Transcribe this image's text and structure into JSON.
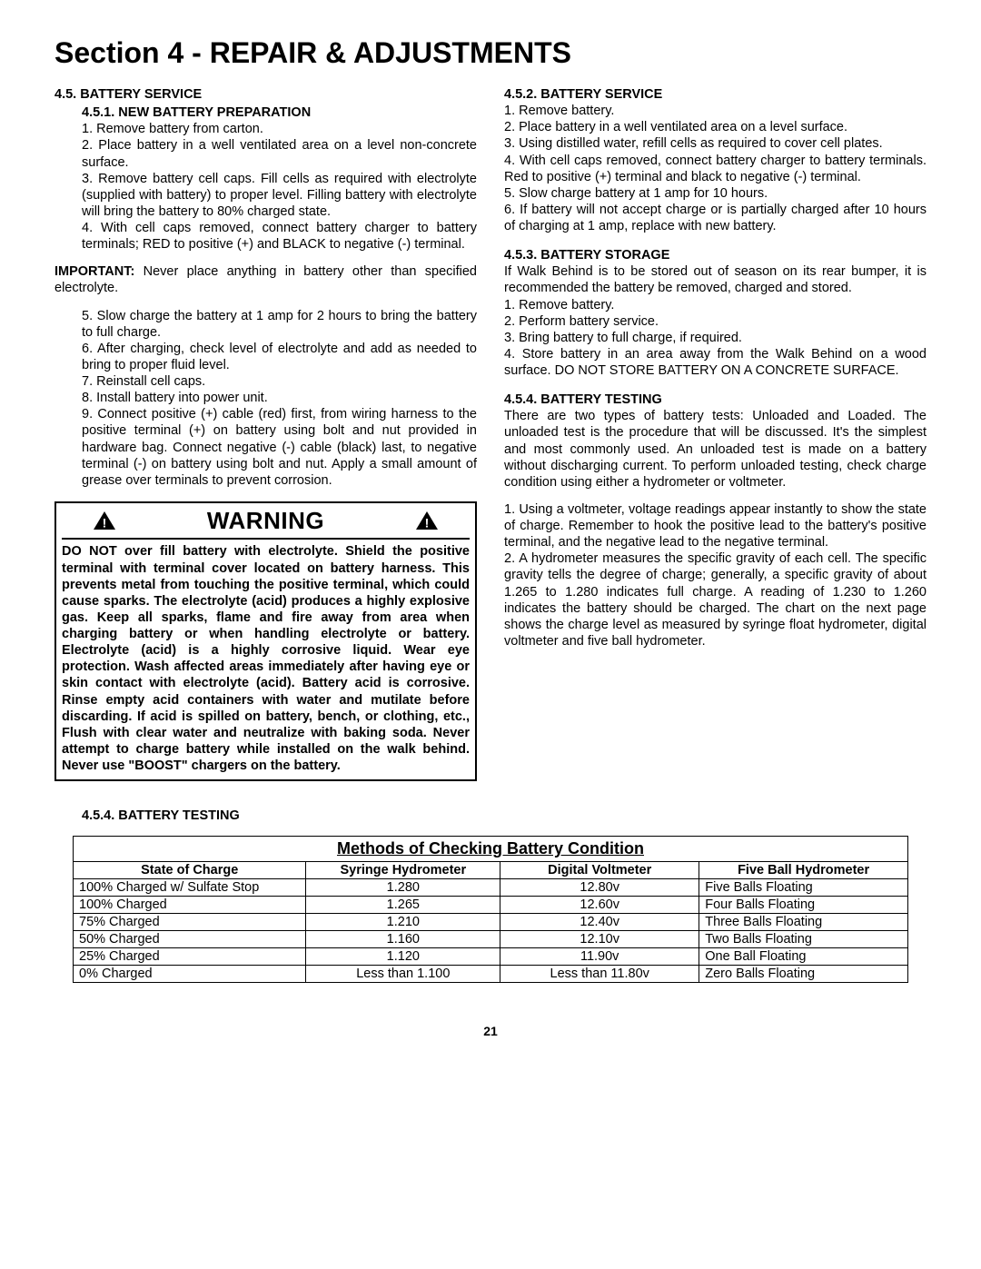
{
  "section_title": "Section 4 - REPAIR & ADJUSTMENTS",
  "page_number": "21",
  "left": {
    "h45": "4.5.  BATTERY SERVICE",
    "h451": "4.5.1.   NEW BATTERY PREPARATION",
    "s1": "1.  Remove battery from carton.",
    "s2": "2.  Place battery in a well ventilated area on a level non-concrete surface.",
    "s3": "3.  Remove battery cell caps. Fill cells as required with electrolyte (supplied with battery) to proper level. Filling battery with electrolyte will bring the battery to 80% charged state.",
    "s4": "4.  With cell caps removed, connect battery charger to battery terminals; RED to positive (+) and BLACK to negative (-) terminal.",
    "imp_label": "IMPORTANT:",
    "imp_body": " Never place anything in battery other than specified electrolyte.",
    "s5": "5.  Slow charge the battery at 1 amp for 2 hours to bring the battery to full charge.",
    "s6": "6.  After charging, check level of electrolyte and add as needed to bring to proper fluid level.",
    "s7": "7.  Reinstall cell caps.",
    "s8": "8.  Install battery into power unit.",
    "s9": "9.  Connect positive (+) cable (red) first, from wiring harness to the positive terminal (+) on battery using bolt and nut provided in hardware bag. Connect negative (-) cable (black) last, to negative terminal (-) on battery using bolt and nut. Apply a small amount of grease over terminals to prevent corrosion.",
    "warn_title": "WARNING",
    "warn_body": "DO NOT over fill battery with electrolyte. Shield the positive terminal with terminal cover located on battery harness. This prevents metal from touching the positive terminal, which could cause sparks. The electrolyte (acid) produces a highly explosive gas. Keep all sparks, flame and fire away from area when charging battery or when handling electrolyte or battery. Electrolyte (acid) is a highly corrosive liquid. Wear eye protection. Wash affected areas immediately after having eye or skin contact with electrolyte (acid). Battery acid is corrosive. Rinse empty acid containers with water and mutilate before discarding. If acid is spilled on battery, bench, or clothing, etc., Flush with clear water and neutralize with baking soda. Never attempt to charge battery while installed on the walk behind. Never use \"BOOST\" chargers on the battery."
  },
  "right": {
    "h452": "4.5.2.   BATTERY SERVICE",
    "r1": "1.  Remove battery.",
    "r2": "2.  Place battery in a well ventilated area on a level surface.",
    "r3": "3.  Using distilled water, refill cells as required to cover cell plates.",
    "r4": "4.  With cell caps removed, connect battery charger to battery terminals.  Red to positive (+) terminal and black to negative (-) terminal.",
    "r5": "5.  Slow charge battery at 1 amp for 10 hours.",
    "r6": "6.  If battery will not accept charge or is partially charged after 10 hours of charging at 1 amp, replace with new battery.",
    "h453": "4.5.3.   BATTERY STORAGE",
    "st_intro": "If Walk Behind is to be stored out of season on its rear bumper, it is recommended the battery be removed, charged and stored.",
    "st1": "1.  Remove battery.",
    "st2": "2.  Perform battery service.",
    "st3": "3.  Bring battery to full charge, if required.",
    "st4": "4.  Store battery in an area away from the Walk Behind on a wood surface. DO NOT STORE BATTERY ON A CONCRETE SURFACE.",
    "h454": "4.5.4.   BATTERY TESTING",
    "bt_intro": "There are two types of battery tests: Unloaded and Loaded. The unloaded test is the procedure that will be discussed. It's the simplest and most commonly used. An unloaded test is made on a battery without discharging current. To perform unloaded testing, check charge condition using either a hydrometer or voltmeter.",
    "bt1": "1.  Using a voltmeter, voltage readings appear instantly to show the state of charge. Remember to hook the positive lead to the battery's positive terminal, and the negative lead to the negative terminal.",
    "bt2": "2.  A hydrometer measures the specific gravity of each cell. The specific gravity tells the degree of charge; generally, a specific gravity of about 1.265 to 1.280 indicates full charge. A reading of 1.230 to 1.260 indicates the battery should be charged. The chart on the next page shows the charge level as measured by syringe float hydrometer, digital voltmeter and five ball hydrometer."
  },
  "table_section_head": "4.5.4.   BATTERY TESTING",
  "table": {
    "title": "Methods of Checking Battery Condition",
    "headers": [
      "State of Charge",
      "Syringe Hydrometer",
      "Digital Voltmeter",
      "Five Ball Hydrometer"
    ],
    "col_widths": [
      "240px",
      "200px",
      "205px",
      "215px"
    ],
    "rows": [
      [
        "100% Charged w/ Sulfate Stop",
        "1.280",
        "12.80v",
        "Five Balls Floating"
      ],
      [
        "100% Charged",
        "1.265",
        "12.60v",
        "Four Balls Floating"
      ],
      [
        "75% Charged",
        "1.210",
        "12.40v",
        "Three Balls Floating"
      ],
      [
        "50% Charged",
        "1.160",
        "12.10v",
        "Two Balls Floating"
      ],
      [
        "25% Charged",
        "1.120",
        "11.90v",
        "One Ball Floating"
      ],
      [
        "0% Charged",
        "Less than 1.100",
        "Less than 11.80v",
        "Zero Balls Floating"
      ]
    ]
  }
}
